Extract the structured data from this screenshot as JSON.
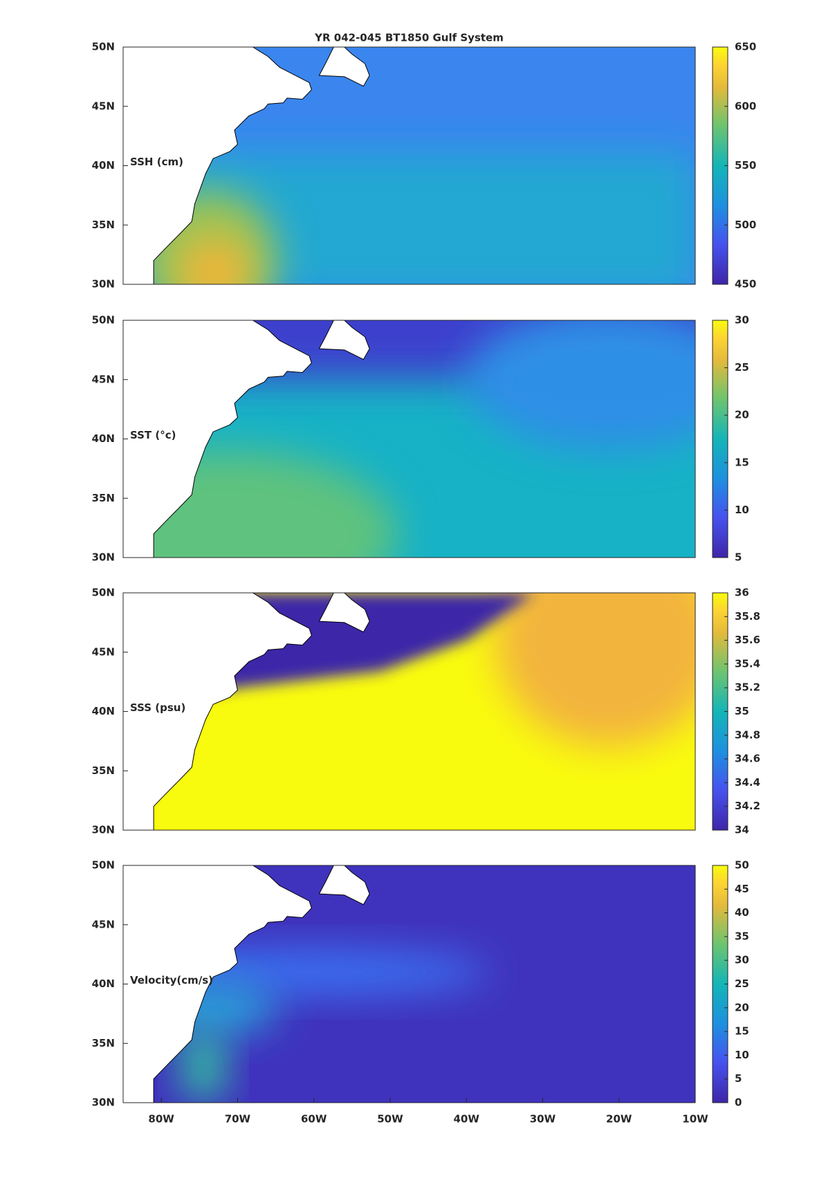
{
  "chart_data": [
    {
      "type": "heatmap",
      "title": "YR 042-045 BT1850 Gulf System",
      "label": "SSH (cm)",
      "xlim": [
        -85,
        -10
      ],
      "ylim": [
        30,
        50
      ],
      "yticks": [
        {
          "value": 30,
          "label": "30N"
        },
        {
          "value": 35,
          "label": "35N"
        },
        {
          "value": 40,
          "label": "40N"
        },
        {
          "value": 45,
          "label": "45N"
        },
        {
          "value": 50,
          "label": "50N"
        }
      ],
      "clim": [
        450,
        650
      ],
      "cticks": [
        450,
        500,
        550,
        600,
        650
      ]
    },
    {
      "type": "heatmap",
      "label": "SST (°c)",
      "xlim": [
        -85,
        -10
      ],
      "ylim": [
        30,
        50
      ],
      "yticks": [
        {
          "value": 30,
          "label": "30N"
        },
        {
          "value": 35,
          "label": "35N"
        },
        {
          "value": 40,
          "label": "40N"
        },
        {
          "value": 45,
          "label": "45N"
        },
        {
          "value": 50,
          "label": "50N"
        }
      ],
      "clim": [
        5,
        30
      ],
      "cticks": [
        5,
        10,
        15,
        20,
        25,
        30
      ]
    },
    {
      "type": "heatmap",
      "label": "SSS (psu)",
      "xlim": [
        -85,
        -10
      ],
      "ylim": [
        30,
        50
      ],
      "yticks": [
        {
          "value": 30,
          "label": "30N"
        },
        {
          "value": 35,
          "label": "35N"
        },
        {
          "value": 40,
          "label": "40N"
        },
        {
          "value": 45,
          "label": "45N"
        },
        {
          "value": 50,
          "label": "50N"
        }
      ],
      "clim": [
        34,
        36
      ],
      "cticks": [
        34,
        34.2,
        34.4,
        34.6,
        34.8,
        35,
        35.2,
        35.4,
        35.6,
        35.8,
        36
      ]
    },
    {
      "type": "heatmap",
      "label": "Velocity(cm/s)",
      "xlim": [
        -85,
        -10
      ],
      "ylim": [
        30,
        50
      ],
      "yticks": [
        {
          "value": 30,
          "label": "30N"
        },
        {
          "value": 35,
          "label": "35N"
        },
        {
          "value": 40,
          "label": "40N"
        },
        {
          "value": 45,
          "label": "45N"
        },
        {
          "value": 50,
          "label": "50N"
        }
      ],
      "xticks": [
        {
          "value": -80,
          "label": "80W"
        },
        {
          "value": -70,
          "label": "70W"
        },
        {
          "value": -60,
          "label": "60W"
        },
        {
          "value": -50,
          "label": "50W"
        },
        {
          "value": -40,
          "label": "40W"
        },
        {
          "value": -30,
          "label": "30W"
        },
        {
          "value": -20,
          "label": "20W"
        },
        {
          "value": -10,
          "label": "10W"
        }
      ],
      "clim": [
        0,
        50
      ],
      "cticks": [
        0,
        5,
        10,
        15,
        20,
        25,
        30,
        35,
        40,
        45,
        50
      ]
    }
  ]
}
